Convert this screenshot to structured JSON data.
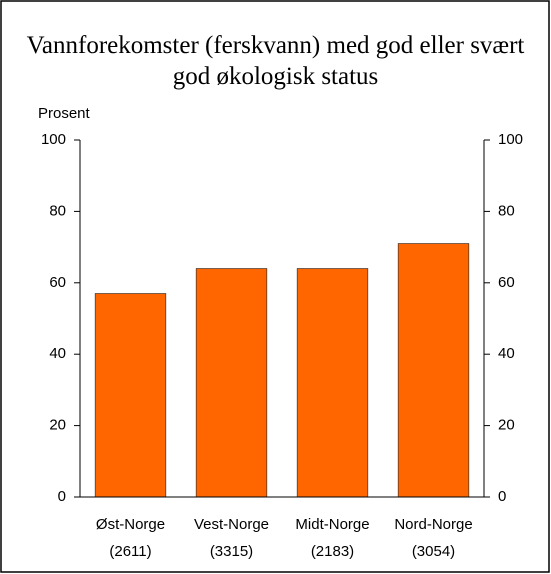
{
  "chart_data": {
    "type": "bar",
    "title": "Vannforekomster (ferskvann) med god eller svært god økologisk status",
    "y_label": "Prosent",
    "categories": [
      [
        "Øst-Norge",
        "(2611)"
      ],
      [
        "Vest-Norge",
        "(3315)"
      ],
      [
        "Midt-Norge",
        "(2183)"
      ],
      [
        "Nord-Norge",
        "(3054)"
      ]
    ],
    "values": [
      57,
      64,
      64,
      71
    ],
    "color": "#ff6600",
    "ylim": [
      0,
      100
    ],
    "yticks": [
      0,
      20,
      40,
      60,
      80,
      100
    ],
    "y2lim": [
      0,
      100
    ],
    "y2ticks": [
      0,
      20,
      40,
      60,
      80,
      100
    ],
    "grid": false
  }
}
